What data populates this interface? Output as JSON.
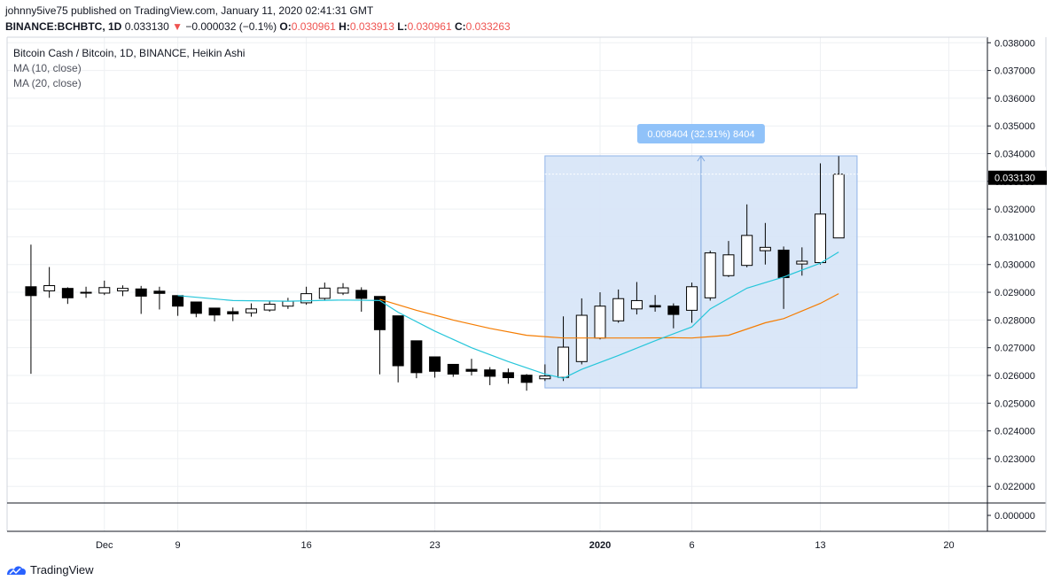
{
  "header": {
    "published": "johnny5ive75 published on TradingView.com, January 11, 2020 02:41:31 GMT",
    "symbol": "BINANCE:BCHBTC, 1D",
    "last": "0.033130",
    "change": "−0.000032 (−0.1%)",
    "o_label": "O:",
    "o_value": "0.030961",
    "h_label": "H:",
    "h_value": "0.033913",
    "l_label": "L:",
    "l_value": "0.030961",
    "c_label": "C:",
    "c_value": "0.033263"
  },
  "legend": {
    "title": "Bitcoin Cash / Bitcoin, 1D, BINANCE, Heikin Ashi",
    "ma10": "MA (10, close)",
    "ma20": "MA (20, close)"
  },
  "footer": {
    "brand": "TradingView"
  },
  "colors": {
    "up_fill": "#ffffff",
    "down_fill": "#000000",
    "wick": "#000000",
    "ma10": "#26c6da",
    "ma20": "#f57c00",
    "range_fill": "#d6e4f7",
    "range_border": "#90b4e8",
    "range_label_bg": "#90c2f9",
    "grid": "#eef0f3"
  },
  "chart_data": {
    "type": "candlestick",
    "title": "Bitcoin Cash / Bitcoin, 1D, BINANCE, Heikin Ashi",
    "ylim": [
      0.0214,
      0.0382
    ],
    "y_ticks": [
      "0.038000",
      "0.037000",
      "0.036000",
      "0.035000",
      "0.034000",
      "0.033000",
      "0.032000",
      "0.031000",
      "0.030000",
      "0.029000",
      "0.028000",
      "0.027000",
      "0.026000",
      "0.025000",
      "0.024000",
      "0.023000",
      "0.022000"
    ],
    "x_ticks": [
      {
        "label": "Dec",
        "day": 5,
        "bold": false
      },
      {
        "label": "9",
        "day": 9,
        "bold": false
      },
      {
        "label": "16",
        "day": 16,
        "bold": false
      },
      {
        "label": "23",
        "day": 23,
        "bold": false
      },
      {
        "label": "2020",
        "day": 32,
        "bold": true
      },
      {
        "label": "6",
        "day": 37,
        "bold": false
      },
      {
        "label": "13",
        "day": 44,
        "bold": false
      },
      {
        "label": "20",
        "day": 51,
        "bold": false
      }
    ],
    "x_range": [
      -0.3,
      53.1
    ],
    "candles": [
      {
        "d": 1,
        "o": 0.0292,
        "c": 0.02888,
        "h": 0.03072,
        "l": 0.02606
      },
      {
        "d": 2,
        "o": 0.02905,
        "c": 0.02924,
        "h": 0.02991,
        "l": 0.0288
      },
      {
        "d": 3,
        "o": 0.02914,
        "c": 0.0288,
        "h": 0.02918,
        "l": 0.02858
      },
      {
        "d": 4,
        "o": 0.02897,
        "c": 0.029,
        "h": 0.0292,
        "l": 0.0288
      },
      {
        "d": 5,
        "o": 0.02897,
        "c": 0.02917,
        "h": 0.02942,
        "l": 0.0289
      },
      {
        "d": 6,
        "o": 0.02905,
        "c": 0.02914,
        "h": 0.02925,
        "l": 0.02886
      },
      {
        "d": 7,
        "o": 0.02912,
        "c": 0.02886,
        "h": 0.02923,
        "l": 0.02822
      },
      {
        "d": 8,
        "o": 0.02904,
        "c": 0.02896,
        "h": 0.0292,
        "l": 0.02838
      },
      {
        "d": 9,
        "o": 0.02888,
        "c": 0.0285,
        "h": 0.02889,
        "l": 0.02815
      },
      {
        "d": 10,
        "o": 0.02865,
        "c": 0.02824,
        "h": 0.02865,
        "l": 0.0281
      },
      {
        "d": 11,
        "o": 0.02843,
        "c": 0.02818,
        "h": 0.02843,
        "l": 0.02795
      },
      {
        "d": 12,
        "o": 0.0283,
        "c": 0.02822,
        "h": 0.02845,
        "l": 0.02796
      },
      {
        "d": 13,
        "o": 0.02826,
        "c": 0.0284,
        "h": 0.0286,
        "l": 0.02812
      },
      {
        "d": 14,
        "o": 0.02836,
        "c": 0.02857,
        "h": 0.0287,
        "l": 0.0283
      },
      {
        "d": 15,
        "o": 0.0285,
        "c": 0.02868,
        "h": 0.0288,
        "l": 0.0284
      },
      {
        "d": 16,
        "o": 0.02862,
        "c": 0.02895,
        "h": 0.0292,
        "l": 0.02855
      },
      {
        "d": 17,
        "o": 0.02878,
        "c": 0.02915,
        "h": 0.02935,
        "l": 0.0287
      },
      {
        "d": 18,
        "o": 0.02897,
        "c": 0.02916,
        "h": 0.02933,
        "l": 0.0289
      },
      {
        "d": 19,
        "o": 0.02907,
        "c": 0.02878,
        "h": 0.02918,
        "l": 0.0283
      },
      {
        "d": 20,
        "o": 0.02885,
        "c": 0.02765,
        "h": 0.02885,
        "l": 0.02604
      },
      {
        "d": 21,
        "o": 0.02815,
        "c": 0.02635,
        "h": 0.02815,
        "l": 0.02575
      },
      {
        "d": 22,
        "o": 0.02725,
        "c": 0.0261,
        "h": 0.02725,
        "l": 0.0259
      },
      {
        "d": 23,
        "o": 0.02667,
        "c": 0.02615,
        "h": 0.02667,
        "l": 0.02592
      },
      {
        "d": 24,
        "o": 0.0264,
        "c": 0.02605,
        "h": 0.0264,
        "l": 0.02595
      },
      {
        "d": 25,
        "o": 0.02622,
        "c": 0.02615,
        "h": 0.0266,
        "l": 0.026
      },
      {
        "d": 26,
        "o": 0.0262,
        "c": 0.02597,
        "h": 0.0263,
        "l": 0.02565
      },
      {
        "d": 27,
        "o": 0.0261,
        "c": 0.02592,
        "h": 0.02625,
        "l": 0.0257
      },
      {
        "d": 28,
        "o": 0.02601,
        "c": 0.02575,
        "h": 0.02605,
        "l": 0.02545
      },
      {
        "d": 29,
        "o": 0.02588,
        "c": 0.02598,
        "h": 0.0264,
        "l": 0.0258
      },
      {
        "d": 30,
        "o": 0.02593,
        "c": 0.02702,
        "h": 0.02813,
        "l": 0.0258
      },
      {
        "d": 31,
        "o": 0.0265,
        "c": 0.02817,
        "h": 0.02878,
        "l": 0.0264
      },
      {
        "d": 32,
        "o": 0.02735,
        "c": 0.0285,
        "h": 0.029,
        "l": 0.0273
      },
      {
        "d": 33,
        "o": 0.02797,
        "c": 0.02877,
        "h": 0.0291,
        "l": 0.0279
      },
      {
        "d": 34,
        "o": 0.0284,
        "c": 0.0287,
        "h": 0.02937,
        "l": 0.0282
      },
      {
        "d": 35,
        "o": 0.02852,
        "c": 0.02847,
        "h": 0.0289,
        "l": 0.0283
      },
      {
        "d": 36,
        "o": 0.0285,
        "c": 0.0282,
        "h": 0.0286,
        "l": 0.0277
      },
      {
        "d": 37,
        "o": 0.02835,
        "c": 0.0292,
        "h": 0.02935,
        "l": 0.0279
      },
      {
        "d": 38,
        "o": 0.0288,
        "c": 0.03042,
        "h": 0.0305,
        "l": 0.0287
      },
      {
        "d": 39,
        "o": 0.0296,
        "c": 0.03035,
        "h": 0.03085,
        "l": 0.02955
      },
      {
        "d": 40,
        "o": 0.02997,
        "c": 0.03105,
        "h": 0.03217,
        "l": 0.0299
      },
      {
        "d": 41,
        "o": 0.0305,
        "c": 0.03062,
        "h": 0.0315,
        "l": 0.03
      },
      {
        "d": 42,
        "o": 0.03052,
        "c": 0.02953,
        "h": 0.03065,
        "l": 0.0284
      },
      {
        "d": 43,
        "o": 0.03002,
        "c": 0.03012,
        "h": 0.03062,
        "l": 0.0296
      },
      {
        "d": 44,
        "o": 0.03007,
        "c": 0.03182,
        "h": 0.03365,
        "l": 0.03
      },
      {
        "d": 45,
        "o": 0.03096,
        "c": 0.03326,
        "h": 0.03391,
        "l": 0.03096
      }
    ],
    "ma10": [
      {
        "d": 9,
        "v": 0.02888
      },
      {
        "d": 12,
        "v": 0.0287
      },
      {
        "d": 15,
        "v": 0.02868
      },
      {
        "d": 18,
        "v": 0.02872
      },
      {
        "d": 20,
        "v": 0.0287
      },
      {
        "d": 21,
        "v": 0.02828
      },
      {
        "d": 23,
        "v": 0.0276
      },
      {
        "d": 25,
        "v": 0.027
      },
      {
        "d": 27,
        "v": 0.0265
      },
      {
        "d": 29,
        "v": 0.02605
      },
      {
        "d": 30,
        "v": 0.0259
      },
      {
        "d": 31,
        "v": 0.02622
      },
      {
        "d": 33,
        "v": 0.02672
      },
      {
        "d": 35,
        "v": 0.02725
      },
      {
        "d": 37,
        "v": 0.02775
      },
      {
        "d": 38,
        "v": 0.0284
      },
      {
        "d": 40,
        "v": 0.02915
      },
      {
        "d": 42,
        "v": 0.02955
      },
      {
        "d": 44,
        "v": 0.03005
      },
      {
        "d": 45,
        "v": 0.03045
      }
    ],
    "ma20": [
      {
        "d": 20,
        "v": 0.02875
      },
      {
        "d": 22,
        "v": 0.02835
      },
      {
        "d": 24,
        "v": 0.028
      },
      {
        "d": 26,
        "v": 0.0277
      },
      {
        "d": 28,
        "v": 0.02745
      },
      {
        "d": 30,
        "v": 0.02735
      },
      {
        "d": 32,
        "v": 0.02735
      },
      {
        "d": 34,
        "v": 0.02735
      },
      {
        "d": 36,
        "v": 0.02736
      },
      {
        "d": 37,
        "v": 0.02735
      },
      {
        "d": 39,
        "v": 0.02745
      },
      {
        "d": 41,
        "v": 0.0279
      },
      {
        "d": 42,
        "v": 0.02805
      },
      {
        "d": 44,
        "v": 0.0286
      },
      {
        "d": 45,
        "v": 0.02895
      }
    ],
    "measure": {
      "from_day": 29,
      "to_day": 46,
      "low": 0.02555,
      "high": 0.03392,
      "label": "0.008404 (32.91%) 8404"
    },
    "price_labels": {
      "close": "0.033263",
      "last": "0.033130",
      "subpane": "0.000000"
    }
  }
}
